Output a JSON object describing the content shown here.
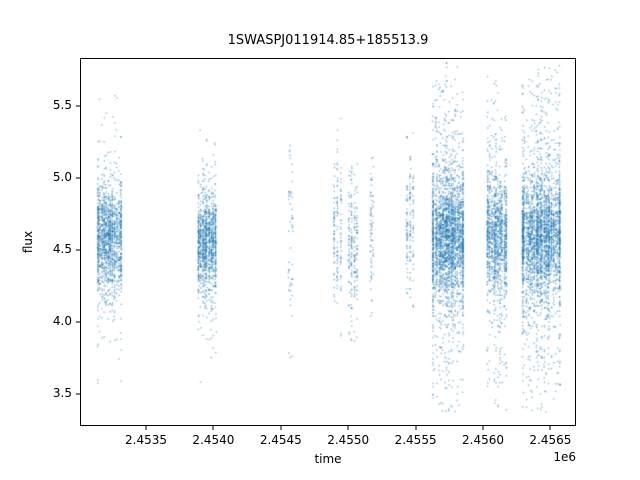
{
  "figure": {
    "background": "#ffffff"
  },
  "chart_data": {
    "type": "scatter",
    "title": "1SWASPJ011914.85+185513.9",
    "xlabel": "time",
    "ylabel": "flux",
    "x_offset_label": "1e6",
    "xlim": [
      2453010,
      2456690
    ],
    "ylim": [
      3.28,
      5.83
    ],
    "x_ticks": {
      "values": [
        2453500,
        2454000,
        2454500,
        2455000,
        2455500,
        2456000,
        2456500
      ],
      "labels": [
        "2.4535",
        "2.4540",
        "2.4545",
        "2.4550",
        "2.4555",
        "2.4560",
        "2.4565"
      ]
    },
    "y_ticks": {
      "values": [
        3.5,
        4.0,
        4.5,
        5.0,
        5.5
      ],
      "labels": [
        "3.5",
        "4.0",
        "4.5",
        "5.0",
        "5.5"
      ]
    },
    "grid": false,
    "legend": false,
    "marker_color": "#1f77b4",
    "marker_alpha": 0.5,
    "marker_size_px": 1.4,
    "flux_range_observed": [
      3.35,
      5.8
    ],
    "series_description": "Light curve photometry grouped in observing-season clusters of dense nightly vertical streaks",
    "clusters": [
      {
        "time_center": 2453229,
        "time_halfwidth": 93,
        "n_points": 1400,
        "flux_mean": 4.58,
        "flux_core_std": 0.18,
        "flux_tail_std": 0.45,
        "tail_fraction": 0.18,
        "flux_min": 3.5,
        "flux_max": 5.78
      },
      {
        "time_center": 2453952,
        "time_halfwidth": 67,
        "n_points": 1100,
        "flux_mean": 4.55,
        "flux_core_std": 0.17,
        "flux_tail_std": 0.42,
        "tail_fraction": 0.15,
        "flux_min": 3.4,
        "flux_max": 5.35
      },
      {
        "time_center": 2454572,
        "time_halfwidth": 12,
        "n_points": 55,
        "flux_mean": 4.6,
        "flux_core_std": 0.3,
        "flux_tail_std": 0.6,
        "tail_fraction": 0.3,
        "flux_min": 3.4,
        "flux_max": 5.3
      },
      {
        "time_center": 2454921,
        "time_halfwidth": 26,
        "n_points": 150,
        "flux_mean": 4.65,
        "flux_core_std": 0.25,
        "flux_tail_std": 0.5,
        "tail_fraction": 0.25,
        "flux_min": 3.9,
        "flux_max": 5.45
      },
      {
        "time_center": 2455036,
        "time_halfwidth": 30,
        "n_points": 210,
        "flux_mean": 4.5,
        "flux_core_std": 0.24,
        "flux_tail_std": 0.45,
        "tail_fraction": 0.25,
        "flux_min": 3.85,
        "flux_max": 5.2
      },
      {
        "time_center": 2455175,
        "time_halfwidth": 12,
        "n_points": 70,
        "flux_mean": 4.6,
        "flux_core_std": 0.28,
        "flux_tail_std": 0.5,
        "tail_fraction": 0.25,
        "flux_min": 4.0,
        "flux_max": 5.3
      },
      {
        "time_center": 2455459,
        "time_halfwidth": 22,
        "n_points": 150,
        "flux_mean": 4.7,
        "flux_core_std": 0.26,
        "flux_tail_std": 0.45,
        "tail_fraction": 0.25,
        "flux_min": 4.1,
        "flux_max": 5.45
      },
      {
        "time_center": 2455741,
        "time_halfwidth": 119,
        "n_points": 2600,
        "flux_mean": 4.6,
        "flux_core_std": 0.2,
        "flux_tail_std": 0.58,
        "tail_fraction": 0.35,
        "flux_min": 3.36,
        "flux_max": 5.8
      },
      {
        "time_center": 2456104,
        "time_halfwidth": 74,
        "n_points": 1250,
        "flux_mean": 4.6,
        "flux_core_std": 0.19,
        "flux_tail_std": 0.52,
        "tail_fraction": 0.3,
        "flux_min": 3.37,
        "flux_max": 5.76
      },
      {
        "time_center": 2456431,
        "time_halfwidth": 148,
        "n_points": 2900,
        "flux_mean": 4.6,
        "flux_core_std": 0.2,
        "flux_tail_std": 0.58,
        "tail_fraction": 0.35,
        "flux_min": 3.36,
        "flux_max": 5.8
      }
    ]
  }
}
